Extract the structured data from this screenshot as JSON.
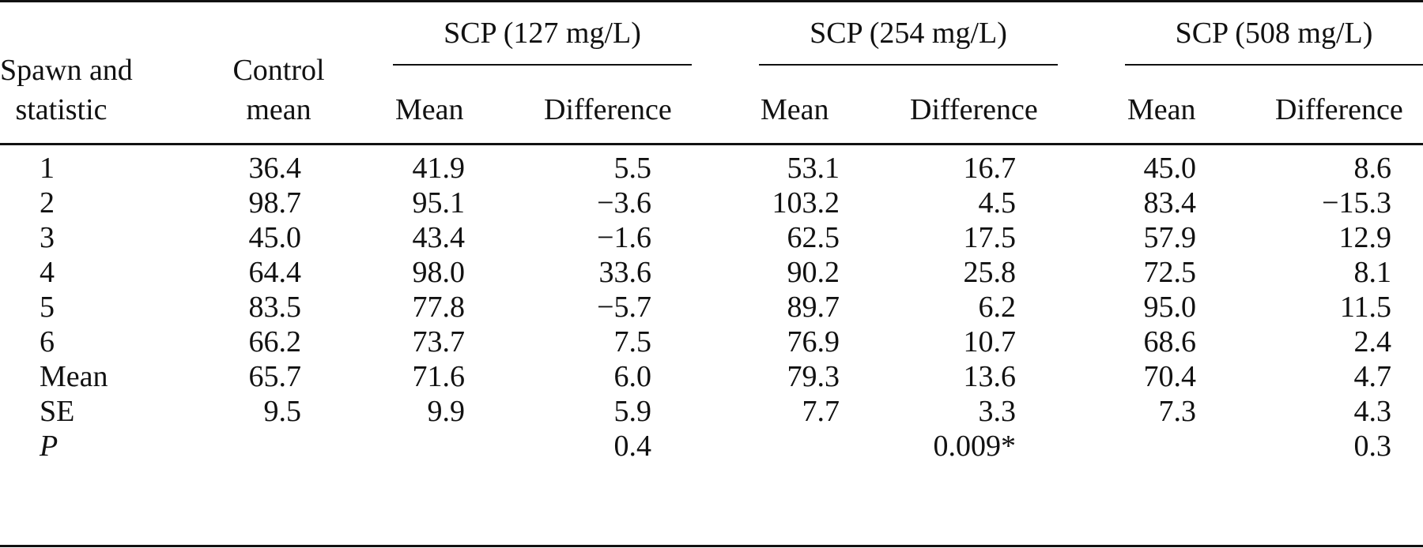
{
  "table": {
    "header": {
      "stub": "Spawn and\nstatistic",
      "stub_line1": "Spawn and",
      "stub_line2": "statistic",
      "control_line1": "Control",
      "control_line2": "mean",
      "groups": [
        {
          "title": "SCP (127 mg/L)",
          "mean": "Mean",
          "difference": "Difference"
        },
        {
          "title": "SCP (254 mg/L)",
          "mean": "Mean",
          "difference": "Difference"
        },
        {
          "title": "SCP (508 mg/L)",
          "mean": "Mean",
          "difference": "Difference"
        }
      ]
    },
    "rows": [
      {
        "label": "1",
        "control": "36.4",
        "m1": "41.9",
        "d1": "5.5",
        "m2": "53.1",
        "d2": "16.7",
        "m3": "45.0",
        "d3": "8.6"
      },
      {
        "label": "2",
        "control": "98.7",
        "m1": "95.1",
        "d1": "−3.6",
        "m2": "103.2",
        "d2": "4.5",
        "m3": "83.4",
        "d3": "−15.3"
      },
      {
        "label": "3",
        "control": "45.0",
        "m1": "43.4",
        "d1": "−1.6",
        "m2": "62.5",
        "d2": "17.5",
        "m3": "57.9",
        "d3": "12.9"
      },
      {
        "label": "4",
        "control": "64.4",
        "m1": "98.0",
        "d1": "33.6",
        "m2": "90.2",
        "d2": "25.8",
        "m3": "72.5",
        "d3": "8.1"
      },
      {
        "label": "5",
        "control": "83.5",
        "m1": "77.8",
        "d1": "−5.7",
        "m2": "89.7",
        "d2": "6.2",
        "m3": "95.0",
        "d3": "11.5"
      },
      {
        "label": "6",
        "control": "66.2",
        "m1": "73.7",
        "d1": "7.5",
        "m2": "76.9",
        "d2": "10.7",
        "m3": "68.6",
        "d3": "2.4"
      },
      {
        "label": "Mean",
        "control": "65.7",
        "m1": "71.6",
        "d1": "6.0",
        "m2": "79.3",
        "d2": "13.6",
        "m3": "70.4",
        "d3": "4.7"
      },
      {
        "label": "SE",
        "control": "9.5",
        "m1": "9.9",
        "d1": "5.9",
        "m2": "7.7",
        "d2": "3.3",
        "m3": "7.3",
        "d3": "4.3"
      },
      {
        "label": "P",
        "control": "",
        "m1": "",
        "d1": "0.4",
        "m2": "",
        "d2": "0.009*",
        "m3": "",
        "d3": "0.3"
      }
    ]
  }
}
